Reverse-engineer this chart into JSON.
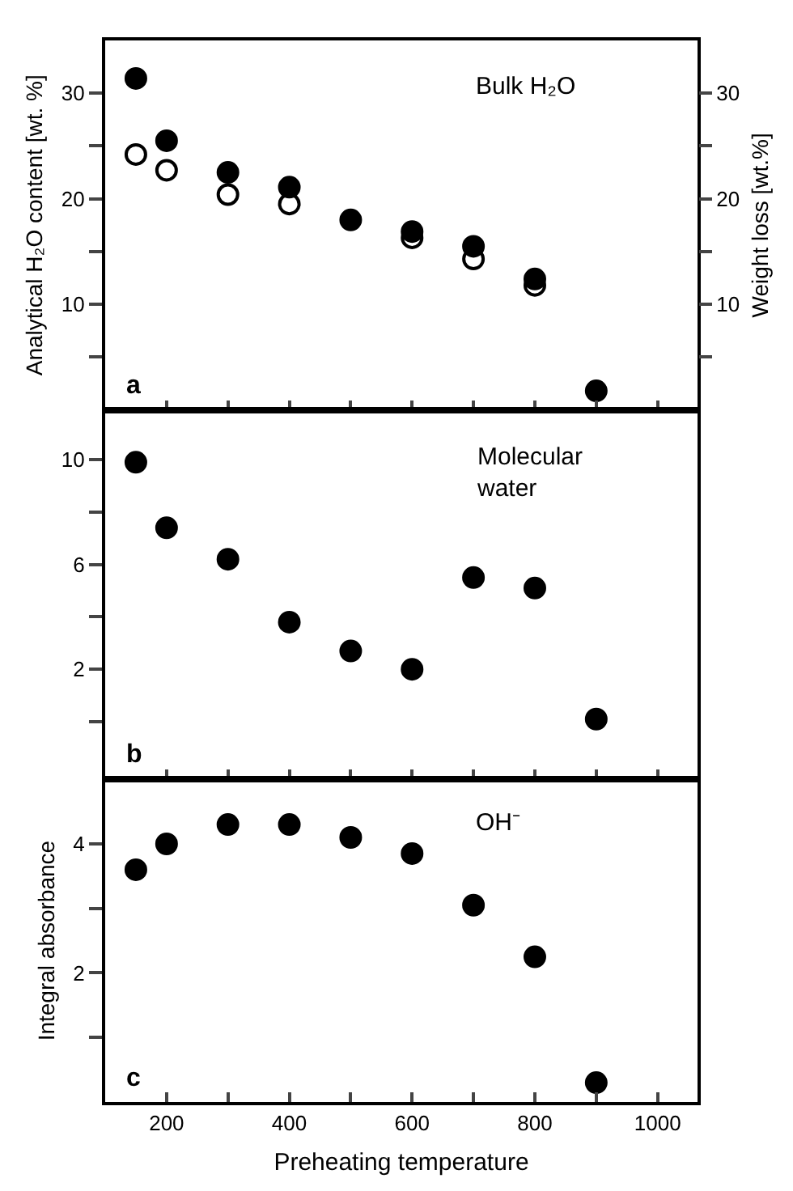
{
  "chart_data": [
    {
      "type": "scatter",
      "ylabel": "Analytical H₂O content [wt. %]",
      "y2label": "Weight loss [wt.%]",
      "annotations": [
        "Bulk H₂O",
        "a"
      ],
      "x": [
        150,
        200,
        300,
        400,
        500,
        600,
        700,
        800,
        900
      ],
      "series": [
        {
          "color": "#ffffff",
          "values": [
            24.2,
            22.7,
            20.4,
            19.5,
            null,
            16.3,
            14.3,
            11.8,
            null
          ]
        },
        {
          "color": "#000000",
          "axis": "y2",
          "values": [
            31.4,
            25.5,
            22.5,
            21.1,
            18.0,
            16.9,
            15.5,
            12.4,
            1.8
          ]
        }
      ],
      "xlim": [
        100,
        1065
      ],
      "xticks": [
        {
          "value": 200,
          "label": null
        },
        {
          "value": 300,
          "label": null
        },
        {
          "value": 400,
          "label": null
        },
        {
          "value": 500,
          "label": null
        },
        {
          "value": 600,
          "label": null
        },
        {
          "value": 700,
          "label": null
        },
        {
          "value": 800,
          "label": null
        },
        {
          "value": 900,
          "label": null
        },
        {
          "value": 1000,
          "label": null
        }
      ],
      "ylim": [
        0,
        35
      ],
      "yticks": [
        {
          "value": 5,
          "label": null
        },
        10,
        {
          "value": 15,
          "label": null
        },
        20,
        {
          "value": 25,
          "label": null
        },
        30
      ],
      "y2lim": [
        0,
        35
      ],
      "y2ticks": [
        {
          "value": 5,
          "label": null
        },
        10,
        {
          "value": 15,
          "label": null
        },
        20,
        {
          "value": 25,
          "label": null
        },
        30
      ],
      "tick_labels": "y",
      "marker": "circle"
    },
    {
      "type": "scatter",
      "annotations": [
        "Molecular\nwater",
        "b"
      ],
      "x": [
        150,
        200,
        300,
        400,
        500,
        600,
        700,
        800,
        900
      ],
      "series": [
        {
          "color": "#000000",
          "values": [
            9.9,
            7.4,
            6.2,
            3.8,
            2.7,
            2.0,
            5.5,
            5.1,
            0.1
          ]
        }
      ],
      "xlim": [
        100,
        1065
      ],
      "xticks": [
        {
          "value": 200,
          "label": null
        },
        {
          "value": 300,
          "label": null
        },
        {
          "value": 400,
          "label": null
        },
        {
          "value": 500,
          "label": null
        },
        {
          "value": 600,
          "label": null
        },
        {
          "value": 700,
          "label": null
        },
        {
          "value": 800,
          "label": null
        },
        {
          "value": 900,
          "label": null
        },
        {
          "value": 1000,
          "label": null
        }
      ],
      "ylim": [
        -2.2,
        11.9
      ],
      "yticks": [
        {
          "value": 0,
          "label": null
        },
        2,
        {
          "value": 4,
          "label": null
        },
        6,
        {
          "value": 8,
          "label": null
        },
        10
      ],
      "tick_labels": "y",
      "marker": "circle"
    },
    {
      "type": "scatter",
      "ylabel": "Integral absorbance",
      "xlabel": "Preheating temperature",
      "annotations": [
        "OH⁻",
        "c"
      ],
      "x": [
        150,
        200,
        300,
        400,
        500,
        600,
        700,
        800,
        900
      ],
      "series": [
        {
          "color": "#000000",
          "values": [
            3.6,
            4.0,
            4.3,
            4.3,
            4.1,
            3.85,
            3.05,
            2.25,
            0.3
          ]
        }
      ],
      "xlim": [
        100,
        1065
      ],
      "xticks": [
        200,
        {
          "value": 300,
          "label": null
        },
        400,
        {
          "value": 500,
          "label": null
        },
        600,
        {
          "value": 700,
          "label": null
        },
        800,
        {
          "value": 900,
          "label": null
        },
        1000
      ],
      "ylim": [
        0,
        5
      ],
      "yticks": [
        {
          "value": 1,
          "label": null
        },
        2,
        {
          "value": 3,
          "label": null
        },
        4
      ],
      "marker": "circle"
    }
  ]
}
